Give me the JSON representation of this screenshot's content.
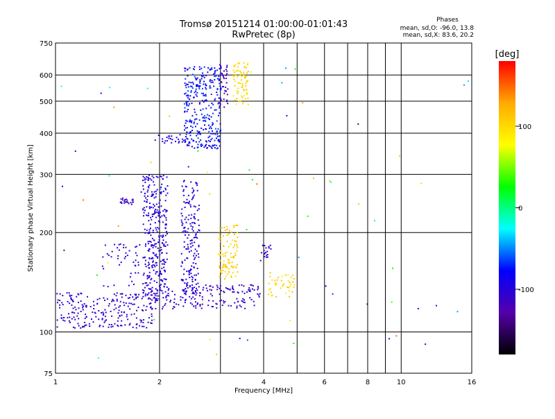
{
  "chart_data": {
    "type": "scatter",
    "title": "Tromsø 20151214 01:00:00-01:01:43",
    "subtitle": "RwPretec (8p)",
    "stats": {
      "heading": "Phases",
      "line1": "mean, sd,O: -96.0, 13.8",
      "line2": "mean, sd,X:  83.6, 20.2"
    },
    "xlabel": "Frequency [MHz]",
    "ylabel": "Stationary phase Virtual Height [km]",
    "x_scale": "log",
    "y_scale": "log",
    "xlim": [
      1,
      16
    ],
    "ylim": [
      75,
      750
    ],
    "x_ticks": [
      1,
      2,
      4,
      6,
      8,
      10,
      16
    ],
    "x_tick_labels": [
      "1",
      "2",
      "4",
      "6",
      "8",
      "10",
      "16"
    ],
    "x_minor_lines": [
      3,
      5,
      7,
      9
    ],
    "y_ticks": [
      75,
      100,
      200,
      300,
      400,
      500,
      600,
      750
    ],
    "y_tick_labels": [
      "75",
      "100",
      "200",
      "300",
      "400",
      "500",
      "600",
      "750"
    ],
    "grid": true,
    "colorbar": {
      "label": "[deg]",
      "range": [
        -180,
        180
      ],
      "ticks": [
        100,
        0,
        -100
      ],
      "tick_labels": [
        "100",
        "0",
        "-100"
      ],
      "colors": [
        "#ff0000",
        "#ffaa00",
        "#ffff00",
        "#00ff00",
        "#00ffff",
        "#0000ff",
        "#5500aa",
        "#000000"
      ]
    },
    "clusters": [
      {
        "f0": 1.0,
        "f1": 1.9,
        "h0": 103,
        "h1": 132,
        "n": 230,
        "phase": -108,
        "spread": 12,
        "seed": 1
      },
      {
        "f0": 1.85,
        "f1": 3.9,
        "h0": 118,
        "h1": 140,
        "n": 170,
        "phase": -110,
        "spread": 10,
        "seed": 2
      },
      {
        "f0": 1.78,
        "f1": 2.1,
        "h0": 125,
        "h1": 300,
        "n": 330,
        "phase": -100,
        "spread": 14,
        "seed": 3
      },
      {
        "f0": 2.3,
        "f1": 2.6,
        "h0": 125,
        "h1": 290,
        "n": 190,
        "phase": -100,
        "spread": 14,
        "seed": 4
      },
      {
        "f0": 1.35,
        "f1": 1.75,
        "h0": 135,
        "h1": 185,
        "n": 45,
        "phase": -105,
        "spread": 12,
        "seed": 5
      },
      {
        "f0": 1.52,
        "f1": 1.68,
        "h0": 244,
        "h1": 256,
        "n": 22,
        "phase": -110,
        "spread": 6,
        "seed": 6
      },
      {
        "f0": 1.9,
        "f1": 2.5,
        "h0": 375,
        "h1": 400,
        "n": 30,
        "phase": -100,
        "spread": 12,
        "seed": 7
      },
      {
        "f0": 2.35,
        "f1": 3.0,
        "h0": 360,
        "h1": 640,
        "n": 320,
        "phase": -80,
        "spread": 22,
        "seed": 8
      },
      {
        "f0": 2.95,
        "f1": 3.15,
        "h0": 480,
        "h1": 650,
        "n": 40,
        "phase": -115,
        "spread": 8,
        "seed": 9
      },
      {
        "f0": 3.25,
        "f1": 3.6,
        "h0": 490,
        "h1": 660,
        "n": 80,
        "phase": 100,
        "spread": 15,
        "seed": 10
      },
      {
        "f0": 2.95,
        "f1": 3.35,
        "h0": 145,
        "h1": 212,
        "n": 100,
        "phase": 105,
        "spread": 15,
        "seed": 11
      },
      {
        "f0": 3.9,
        "f1": 4.2,
        "h0": 165,
        "h1": 185,
        "n": 18,
        "phase": -110,
        "spread": 10,
        "seed": 12
      },
      {
        "f0": 4.1,
        "f1": 4.9,
        "h0": 128,
        "h1": 152,
        "n": 40,
        "phase": 100,
        "spread": 15,
        "seed": 13
      },
      {
        "f0": 1.0,
        "f1": 16.0,
        "h0": 80,
        "h1": 660,
        "n": 70,
        "phase": 0,
        "spread": 150,
        "seed": 14
      }
    ]
  }
}
